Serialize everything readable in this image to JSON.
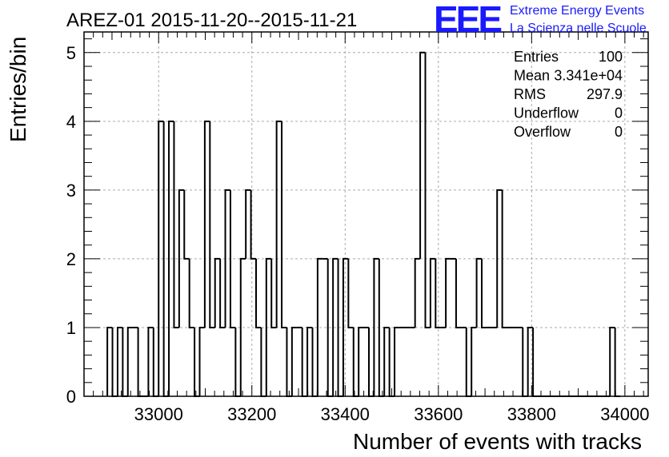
{
  "header": {
    "title": "AREZ-01 2015-11-20--2015-11-21",
    "logo": {
      "letters": "EEE",
      "line1": "Extreme Energy Events",
      "line2": "La Scienza nelle Scuole",
      "color": "#1a1aff"
    }
  },
  "stats": [
    {
      "label": "Entries",
      "value": "100"
    },
    {
      "label": "Mean",
      "value": "3.341e+04"
    },
    {
      "label": "RMS",
      "value": "297.9"
    },
    {
      "label": "Underflow",
      "value": "0"
    },
    {
      "label": "Overflow",
      "value": "0"
    }
  ],
  "chart_data": {
    "type": "bar",
    "histogram": true,
    "xlabel": "Number of events with tracks",
    "ylabel": "Entries/bin",
    "xlim": [
      32840,
      34050
    ],
    "ylim": [
      0,
      5.3
    ],
    "bin_width": 11,
    "bin_starts": [
      32890,
      32901,
      32912,
      32923,
      32934,
      32945,
      32956,
      32967,
      32978,
      32989,
      33000,
      33011,
      33022,
      33033,
      33044,
      33055,
      33066,
      33077,
      33088,
      33099,
      33110,
      33121,
      33132,
      33143,
      33154,
      33165,
      33176,
      33187,
      33198,
      33209,
      33220,
      33231,
      33242,
      33253,
      33264,
      33275,
      33286,
      33297,
      33308,
      33319,
      33330,
      33341,
      33352,
      33363,
      33374,
      33385,
      33396,
      33407,
      33418,
      33429,
      33440,
      33451,
      33462,
      33473,
      33484,
      33495,
      33506,
      33517,
      33528,
      33539,
      33550,
      33561,
      33572,
      33583,
      33594,
      33605,
      33616,
      33627,
      33638,
      33649,
      33660,
      33671,
      33682,
      33693,
      33704,
      33715,
      33726,
      33737,
      33748,
      33759,
      33770,
      33781,
      33792,
      33803,
      33814,
      33825,
      33836,
      33847,
      33858,
      33869,
      33880,
      33891,
      33902,
      33913,
      33924,
      33935,
      33946,
      33957,
      33968,
      33979
    ],
    "values": [
      1,
      0,
      1,
      0,
      1,
      1,
      0,
      0,
      1,
      0,
      4,
      0,
      4,
      1,
      3,
      2,
      1,
      0,
      1,
      4,
      1,
      2,
      1,
      3,
      1,
      0,
      2,
      3,
      2,
      1,
      0,
      2,
      1,
      4,
      1,
      0,
      1,
      1,
      0,
      1,
      0,
      2,
      2,
      0,
      2,
      0,
      2,
      1,
      0,
      1,
      1,
      0,
      2,
      0,
      1,
      0,
      1,
      1,
      1,
      1,
      2,
      5,
      1,
      2,
      1,
      1,
      2,
      2,
      1,
      1,
      0,
      1,
      2,
      1,
      1,
      1,
      3,
      1,
      1,
      1,
      1,
      0,
      1,
      0,
      0,
      0,
      0,
      0,
      0,
      0,
      0,
      0,
      0,
      0,
      0,
      0,
      0,
      0,
      1,
      0
    ],
    "x_ticks": [
      33000,
      33200,
      33400,
      33600,
      33800,
      34000
    ],
    "y_ticks": [
      0,
      1,
      2,
      3,
      4,
      5
    ],
    "grid": true,
    "line_color": "#000000",
    "grid_color": "#aaaaaa"
  }
}
